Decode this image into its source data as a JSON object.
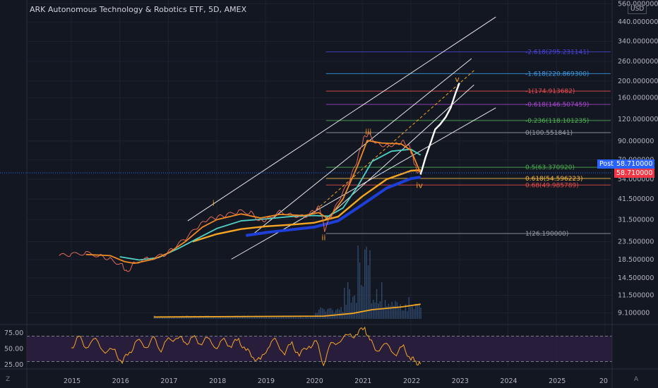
{
  "title": "ARK Autonomous Technology & Robotics ETF, 5D, AMEX",
  "currency": "USD",
  "corner_left": "Z",
  "corner_right": "A",
  "colors": {
    "bg": "#131722",
    "grid": "#1e222d",
    "axis": "#b2b5be"
  },
  "chart_data": {
    "type": "line",
    "price_ticks": [
      "560.000000",
      "440.000000",
      "340.000000",
      "260.000000",
      "200.000000",
      "160.000000",
      "120.000000",
      "90.000000",
      "70.000000",
      "54.000000",
      "41.500000",
      "31.500000",
      "23.500000",
      "18.500000",
      "14.500000",
      "11.500000",
      "9.100000"
    ],
    "years": [
      "2015",
      "2016",
      "2017",
      "2018",
      "2019",
      "2020",
      "2021",
      "2022",
      "2023",
      "2024",
      "2025",
      "20"
    ],
    "rsi_ticks": [
      "75.00",
      "50.00",
      "25.00"
    ],
    "fib_levels": [
      {
        "label": "-2.618(295.231141)",
        "value": 295.23,
        "color": "#4a42d8"
      },
      {
        "label": "-1.618(220.869300)",
        "value": 220.87,
        "color": "#3d9ae0"
      },
      {
        "label": "-1(174.913682)",
        "value": 174.91,
        "color": "#e84c4c"
      },
      {
        "label": "-0.618(146.507459)",
        "value": 146.51,
        "color": "#a547c9"
      },
      {
        "label": "-0.236(118.101235)",
        "value": 118.1,
        "color": "#4caf50"
      },
      {
        "label": "0(100.551841)",
        "value": 100.55,
        "color": "#9aa0a6"
      },
      {
        "label": "0.5(63.370920)",
        "value": 63.37,
        "color": "#4caf50"
      },
      {
        "label": "0.618(54.596223)",
        "value": 54.6,
        "color": "#f5b942"
      },
      {
        "label": "0.68(49.985789)",
        "value": 49.99,
        "color": "#e84c4c"
      },
      {
        "label": "1(26.190000)",
        "value": 26.19,
        "color": "#9aa0a6"
      }
    ],
    "waves": [
      {
        "label": "i",
        "date": 2017.95,
        "price": 38
      },
      {
        "label": "ii",
        "date": 2020.2,
        "price": 24
      },
      {
        "label": "iii",
        "date": 2021.1,
        "price": 98
      },
      {
        "label": "iv",
        "date": 2022.15,
        "price": 48
      },
      {
        "label": "v",
        "date": 2022.95,
        "price": 198
      }
    ],
    "price_series": [
      [
        2014.75,
        19.5
      ],
      [
        2015.0,
        19.8
      ],
      [
        2015.3,
        20.2
      ],
      [
        2015.6,
        19.4
      ],
      [
        2015.8,
        18.6
      ],
      [
        2016.05,
        17.2
      ],
      [
        2016.15,
        15.6
      ],
      [
        2016.3,
        17.8
      ],
      [
        2016.6,
        18.8
      ],
      [
        2016.9,
        19.6
      ],
      [
        2017.1,
        21.4
      ],
      [
        2017.35,
        24.5
      ],
      [
        2017.6,
        28.5
      ],
      [
        2017.8,
        31.5
      ],
      [
        2018.0,
        32.5
      ],
      [
        2018.2,
        33.5
      ],
      [
        2018.45,
        35.2
      ],
      [
        2018.7,
        34.6
      ],
      [
        2018.9,
        30.8
      ],
      [
        2019.05,
        31.8
      ],
      [
        2019.3,
        35.2
      ],
      [
        2019.55,
        33.4
      ],
      [
        2019.8,
        32.8
      ],
      [
        2020.0,
        35.2
      ],
      [
        2020.12,
        37.5
      ],
      [
        2020.22,
        27.5
      ],
      [
        2020.35,
        32.8
      ],
      [
        2020.55,
        42.5
      ],
      [
        2020.75,
        54.5
      ],
      [
        2020.9,
        70.5
      ],
      [
        2021.02,
        92.5
      ],
      [
        2021.12,
        99.5
      ],
      [
        2021.3,
        86.5
      ],
      [
        2021.5,
        84.5
      ],
      [
        2021.7,
        86.5
      ],
      [
        2021.85,
        89.5
      ],
      [
        2021.98,
        82.5
      ],
      [
        2022.05,
        70.5
      ],
      [
        2022.12,
        60.5
      ],
      [
        2022.2,
        57.5
      ]
    ],
    "ma_orange": [
      [
        2015.3,
        19.8
      ],
      [
        2015.8,
        19.5
      ],
      [
        2016.1,
        18.0
      ],
      [
        2016.3,
        17.6
      ],
      [
        2016.7,
        18.6
      ],
      [
        2017.0,
        20.2
      ],
      [
        2017.35,
        23.5
      ],
      [
        2017.7,
        28.5
      ],
      [
        2018.0,
        31.5
      ],
      [
        2018.5,
        34.0
      ],
      [
        2018.9,
        32.2
      ],
      [
        2019.3,
        33.8
      ],
      [
        2019.8,
        33.3
      ],
      [
        2020.1,
        34.6
      ],
      [
        2020.3,
        31.8
      ],
      [
        2020.6,
        41.5
      ],
      [
        2020.9,
        64.5
      ],
      [
        2021.1,
        90.5
      ],
      [
        2021.4,
        87.5
      ],
      [
        2021.8,
        86.5
      ],
      [
        2022.0,
        79.5
      ],
      [
        2022.2,
        58.5
      ]
    ],
    "ma_teal": [
      [
        2016.0,
        19.2
      ],
      [
        2016.4,
        18.4
      ],
      [
        2016.8,
        19.0
      ],
      [
        2017.2,
        21.4
      ],
      [
        2017.6,
        24.5
      ],
      [
        2018.0,
        28.0
      ],
      [
        2018.5,
        31.0
      ],
      [
        2019.0,
        31.8
      ],
      [
        2019.5,
        32.8
      ],
      [
        2020.0,
        33.3
      ],
      [
        2020.3,
        33.0
      ],
      [
        2020.6,
        36.8
      ],
      [
        2020.9,
        49.0
      ],
      [
        2021.2,
        68.5
      ],
      [
        2021.6,
        78.5
      ],
      [
        2022.0,
        80.5
      ],
      [
        2022.2,
        74.5
      ]
    ],
    "ma_orange2": [
      [
        2017.5,
        23.5
      ],
      [
        2018.0,
        26.0
      ],
      [
        2018.5,
        27.8
      ],
      [
        2019.0,
        28.8
      ],
      [
        2019.5,
        29.4
      ],
      [
        2020.0,
        30.2
      ],
      [
        2020.5,
        32.8
      ],
      [
        2021.0,
        43.0
      ],
      [
        2021.5,
        54.0
      ],
      [
        2022.0,
        60.5
      ],
      [
        2022.2,
        61.0
      ]
    ],
    "ma_blue": [
      [
        2018.6,
        25.5
      ],
      [
        2019.0,
        26.5
      ],
      [
        2019.5,
        27.5
      ],
      [
        2020.0,
        28.5
      ],
      [
        2020.5,
        31.0
      ],
      [
        2021.0,
        38.5
      ],
      [
        2021.5,
        48.0
      ],
      [
        2022.0,
        54.5
      ],
      [
        2022.2,
        55.5
      ]
    ],
    "projection": [
      [
        2022.2,
        57.5
      ],
      [
        2022.3,
        72.0
      ],
      [
        2022.42,
        90.0
      ],
      [
        2022.5,
        105.0
      ],
      [
        2022.6,
        112.0
      ],
      [
        2022.72,
        124.0
      ],
      [
        2022.82,
        140.0
      ],
      [
        2022.92,
        170.0
      ],
      [
        2023.0,
        195.0
      ]
    ],
    "volume_avg": [
      [
        2016.7,
        9.3
      ],
      [
        2020.2,
        9.4
      ],
      [
        2020.8,
        9.7
      ],
      [
        2021.2,
        10.1
      ],
      [
        2021.8,
        10.4
      ],
      [
        2022.2,
        10.7
      ]
    ],
    "rsi": [
      [
        2015.0,
        52
      ],
      [
        2015.15,
        68
      ],
      [
        2015.3,
        55
      ],
      [
        2015.5,
        62
      ],
      [
        2015.7,
        48
      ],
      [
        2015.9,
        45
      ],
      [
        2016.05,
        30
      ],
      [
        2016.2,
        44
      ],
      [
        2016.35,
        62
      ],
      [
        2016.55,
        55
      ],
      [
        2016.7,
        65
      ],
      [
        2016.85,
        50
      ],
      [
        2017.0,
        63
      ],
      [
        2017.2,
        70
      ],
      [
        2017.35,
        58
      ],
      [
        2017.5,
        68
      ],
      [
        2017.65,
        60
      ],
      [
        2017.8,
        64
      ],
      [
        2018.0,
        55
      ],
      [
        2018.15,
        62
      ],
      [
        2018.3,
        56
      ],
      [
        2018.45,
        64
      ],
      [
        2018.6,
        48
      ],
      [
        2018.75,
        38
      ],
      [
        2018.9,
        30
      ],
      [
        2019.05,
        55
      ],
      [
        2019.2,
        62
      ],
      [
        2019.4,
        45
      ],
      [
        2019.55,
        58
      ],
      [
        2019.7,
        40
      ],
      [
        2019.9,
        55
      ],
      [
        2020.05,
        60
      ],
      [
        2020.2,
        28
      ],
      [
        2020.35,
        55
      ],
      [
        2020.55,
        66
      ],
      [
        2020.75,
        70
      ],
      [
        2020.9,
        74
      ],
      [
        2021.05,
        84
      ],
      [
        2021.15,
        62
      ],
      [
        2021.3,
        50
      ],
      [
        2021.5,
        54
      ],
      [
        2021.7,
        44
      ],
      [
        2021.85,
        52
      ],
      [
        2022.0,
        35
      ],
      [
        2022.1,
        30
      ],
      [
        2022.2,
        26
      ]
    ]
  }
}
